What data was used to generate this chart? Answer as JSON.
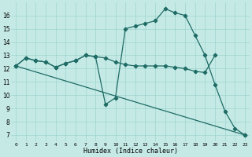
{
  "xlabel": "Humidex (Indice chaleur)",
  "bg_color": "#c5eae6",
  "grid_color": "#9dd4ce",
  "line_color": "#1f6b65",
  "xlim": [
    -0.5,
    23.5
  ],
  "ylim": [
    6.5,
    17.0
  ],
  "xticks": [
    0,
    1,
    2,
    3,
    4,
    5,
    6,
    7,
    8,
    9,
    10,
    11,
    12,
    13,
    14,
    15,
    16,
    17,
    18,
    19,
    20,
    21,
    22,
    23
  ],
  "yticks": [
    7,
    8,
    9,
    10,
    11,
    12,
    13,
    14,
    15,
    16
  ],
  "series": [
    {
      "x": [
        0,
        1,
        2,
        3,
        4,
        5,
        6,
        7,
        8,
        9,
        10,
        11,
        12,
        13,
        14,
        15,
        16,
        17,
        18,
        19,
        20
      ],
      "y": [
        12.2,
        12.8,
        12.6,
        12.5,
        12.1,
        12.4,
        12.6,
        13.0,
        12.9,
        12.8,
        12.5,
        12.3,
        12.2,
        12.2,
        12.2,
        12.2,
        12.1,
        12.0,
        11.8,
        11.7,
        13.0
      ]
    },
    {
      "x": [
        0,
        1,
        2,
        3,
        4,
        5,
        6,
        7,
        8,
        9,
        10,
        11,
        12,
        13,
        14,
        15,
        16,
        17,
        18,
        19,
        20,
        21,
        22,
        23
      ],
      "y": [
        12.2,
        12.8,
        12.6,
        12.5,
        12.1,
        12.4,
        12.6,
        13.0,
        12.9,
        9.3,
        9.8,
        15.0,
        15.2,
        15.4,
        15.6,
        16.5,
        16.2,
        16.0,
        14.5,
        13.0,
        10.8,
        8.8,
        7.5,
        7.0
      ]
    },
    {
      "x": [
        0,
        23
      ],
      "y": [
        12.2,
        7.0
      ]
    }
  ]
}
